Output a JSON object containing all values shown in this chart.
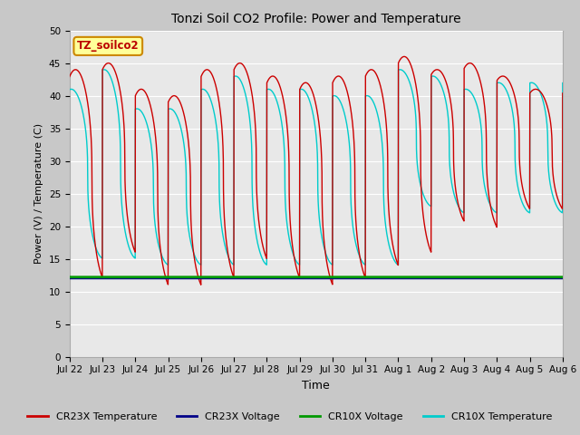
{
  "title": "Tonzi Soil CO2 Profile: Power and Temperature",
  "xlabel": "Time",
  "ylabel": "Power (V) / Temperature (C)",
  "ylim": [
    0,
    50
  ],
  "yticks": [
    0,
    5,
    10,
    15,
    20,
    25,
    30,
    35,
    40,
    45,
    50
  ],
  "annotation_text": "TZ_soilco2",
  "annotation_color": "#bb0000",
  "annotation_bg": "#ffff99",
  "annotation_edge": "#cc8800",
  "bg_color": "#e8e8e8",
  "plot_bg": "#e8e8e8",
  "fig_bg": "#c8c8c8",
  "grid_color": "#ffffff",
  "xtick_labels": [
    "Jul 22",
    "Jul 23",
    "Jul 24",
    "Jul 25",
    "Jul 26",
    "Jul 27",
    "Jul 28",
    "Jul 29",
    "Jul 30",
    "Jul 31",
    "Aug 1",
    "Aug 2",
    "Aug 3",
    "Aug 4",
    "Aug 5",
    "Aug 6"
  ],
  "cr23x_temp_color": "#cc0000",
  "cr23x_volt_color": "#000088",
  "cr10x_volt_color": "#009900",
  "cr10x_temp_color": "#00cccc",
  "voltage_level": 12.0,
  "legend_labels": [
    "CR23X Temperature",
    "CR23X Voltage",
    "CR10X Voltage",
    "CR10X Temperature"
  ],
  "legend_colors": [
    "#cc0000",
    "#000088",
    "#009900",
    "#00cccc"
  ]
}
